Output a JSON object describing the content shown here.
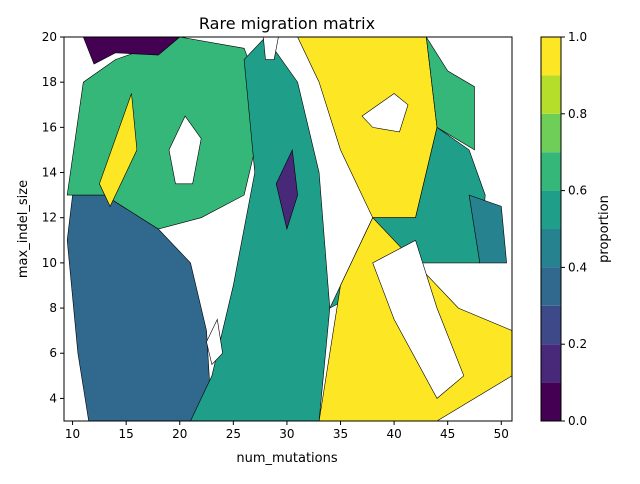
{
  "chart_data": {
    "type": "contour",
    "title": "Rare migration matrix",
    "xlabel": "num_mutations",
    "ylabel": "max_indel_size",
    "xlim": [
      9.2,
      51
    ],
    "ylim": [
      3,
      20
    ],
    "x_ticks": [
      10,
      15,
      20,
      25,
      30,
      35,
      40,
      45,
      50
    ],
    "y_ticks": [
      4,
      6,
      8,
      10,
      12,
      14,
      16,
      18,
      20
    ],
    "colorbar": {
      "label": "proportion",
      "range": [
        0,
        1
      ],
      "ticks": [
        "0.0",
        "0.2",
        "0.4",
        "0.6",
        "0.8",
        "1.0"
      ],
      "levels": [
        0,
        0.1,
        0.2,
        0.3,
        0.4,
        0.5,
        0.6,
        0.7,
        0.8,
        0.9,
        1.0
      ]
    },
    "colormap": [
      "#440154",
      "#482878",
      "#3e4989",
      "#31688e",
      "#26828e",
      "#1f9e89",
      "#35b779",
      "#6ece58",
      "#b5de2b",
      "#fde725"
    ],
    "grid": false,
    "legend": "colorbar-right",
    "regions": [
      {
        "name": "lower-left-band",
        "value": 0.35,
        "points": [
          [
            11.5,
            3
          ],
          [
            23,
            3
          ],
          [
            22.5,
            7
          ],
          [
            21,
            10
          ],
          [
            18,
            11.5
          ],
          [
            13,
            13
          ],
          [
            10,
            13
          ],
          [
            9.5,
            11
          ],
          [
            10.5,
            6
          ]
        ]
      },
      {
        "name": "left-upper-field",
        "value": 0.65,
        "points": [
          [
            9.5,
            13
          ],
          [
            11,
            18
          ],
          [
            14,
            19
          ],
          [
            20,
            20
          ],
          [
            26,
            19.5
          ],
          [
            28,
            17
          ],
          [
            26,
            13
          ],
          [
            22,
            12
          ],
          [
            18,
            11.5
          ],
          [
            13,
            13
          ]
        ]
      },
      {
        "name": "upper-left-dark",
        "value": 0.08,
        "points": [
          [
            11,
            20
          ],
          [
            20,
            20
          ],
          [
            18,
            19.2
          ],
          [
            14,
            19.3
          ],
          [
            12,
            18.8
          ]
        ]
      },
      {
        "name": "left-yellow-streak",
        "value": 0.95,
        "points": [
          [
            12.5,
            13.5
          ],
          [
            15.5,
            17.5
          ],
          [
            16,
            15
          ],
          [
            13.5,
            12.5
          ]
        ]
      },
      {
        "name": "center-mix",
        "value": 0.55,
        "points": [
          [
            21,
            3
          ],
          [
            33,
            3
          ],
          [
            34,
            8
          ],
          [
            33,
            14
          ],
          [
            31,
            18
          ],
          [
            28,
            20
          ],
          [
            26,
            19
          ],
          [
            27,
            14
          ],
          [
            25,
            9
          ],
          [
            23,
            5
          ]
        ]
      },
      {
        "name": "center-dark-spots",
        "value": 0.15,
        "points": [
          [
            29,
            13.5
          ],
          [
            30.5,
            15
          ],
          [
            31,
            13
          ],
          [
            30,
            11.5
          ]
        ]
      },
      {
        "name": "right-upper-yellow",
        "value": 0.95,
        "points": [
          [
            31,
            20
          ],
          [
            43,
            20
          ],
          [
            44,
            16
          ],
          [
            42,
            12
          ],
          [
            38,
            12
          ],
          [
            35,
            15
          ],
          [
            33,
            18
          ]
        ]
      },
      {
        "name": "right-mid-teal",
        "value": 0.55,
        "points": [
          [
            34,
            8
          ],
          [
            38,
            12
          ],
          [
            42,
            12
          ],
          [
            44,
            16
          ],
          [
            47,
            15
          ],
          [
            48.5,
            13
          ],
          [
            48,
            10
          ],
          [
            42,
            10
          ]
        ]
      },
      {
        "name": "right-lower-yellow",
        "value": 0.95,
        "points": [
          [
            33,
            3
          ],
          [
            44,
            3
          ],
          [
            51,
            5
          ],
          [
            51,
            7
          ],
          [
            46,
            8
          ],
          [
            42,
            10
          ],
          [
            38,
            12
          ],
          [
            35,
            9
          ]
        ]
      },
      {
        "name": "right-edge-blue",
        "value": 0.4,
        "points": [
          [
            47,
            13
          ],
          [
            50,
            12.5
          ],
          [
            50.5,
            10
          ],
          [
            48,
            10
          ]
        ]
      },
      {
        "name": "upper-right-teal",
        "value": 0.6,
        "points": [
          [
            43,
            20
          ],
          [
            45,
            18.5
          ],
          [
            47.5,
            17.8
          ],
          [
            47.5,
            15
          ],
          [
            44,
            16
          ]
        ]
      }
    ],
    "nan_regions": [
      {
        "name": "nan-left-lobe",
        "points": [
          [
            19,
            15
          ],
          [
            20.5,
            16.5
          ],
          [
            22,
            15.5
          ],
          [
            21.2,
            13.5
          ],
          [
            19.6,
            13.5
          ]
        ]
      },
      {
        "name": "nan-center-top",
        "points": [
          [
            27.8,
            20
          ],
          [
            29.2,
            20
          ],
          [
            28.8,
            19
          ],
          [
            28,
            19
          ]
        ]
      },
      {
        "name": "nan-right-top",
        "points": [
          [
            37,
            16.5
          ],
          [
            40,
            17.5
          ],
          [
            41.3,
            17
          ],
          [
            40.5,
            15.8
          ],
          [
            38,
            16
          ]
        ]
      },
      {
        "name": "nan-right-lower",
        "points": [
          [
            38,
            10
          ],
          [
            42,
            11
          ],
          [
            44,
            8
          ],
          [
            46.5,
            5
          ],
          [
            44,
            4
          ],
          [
            40,
            7.5
          ]
        ]
      },
      {
        "name": "nan-left-low",
        "points": [
          [
            22.5,
            6.5
          ],
          [
            23.5,
            7.5
          ],
          [
            24,
            6
          ],
          [
            23,
            5.5
          ]
        ]
      }
    ]
  }
}
